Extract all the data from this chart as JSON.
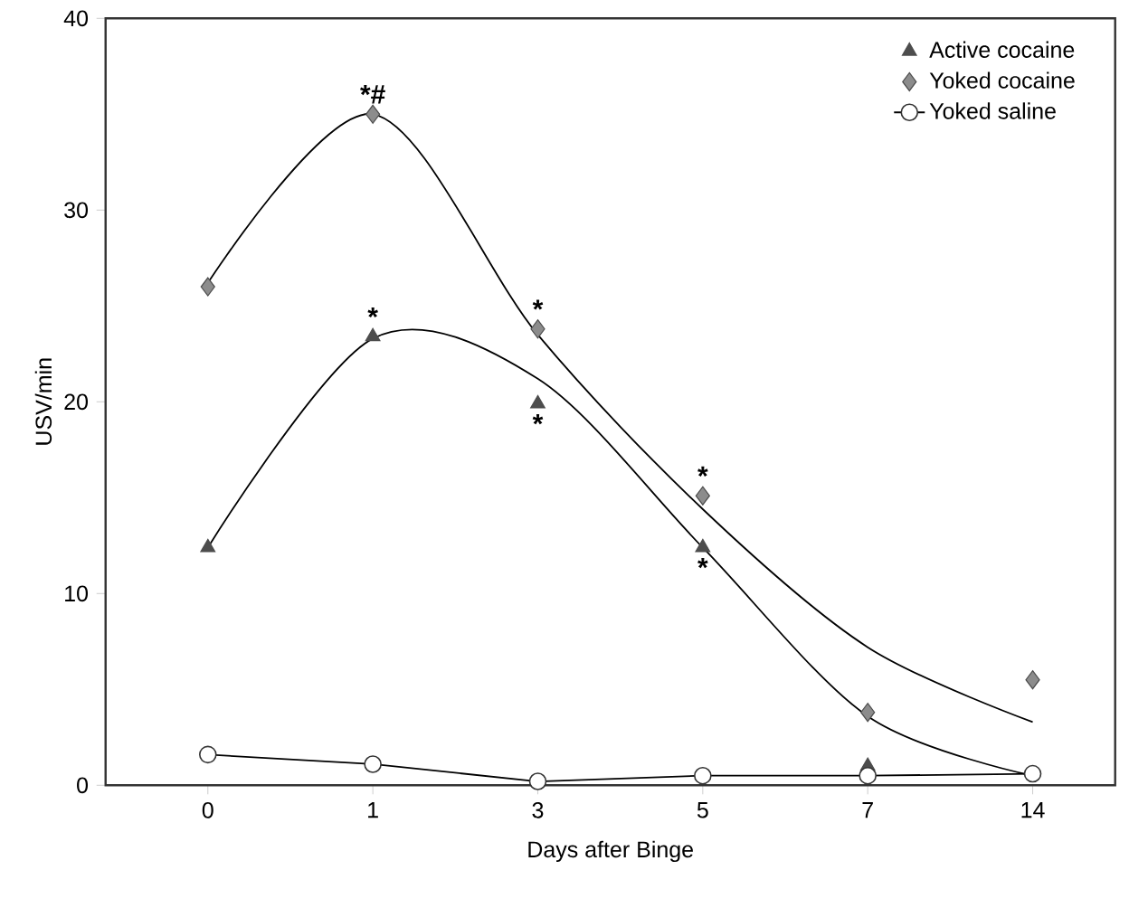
{
  "chart_data": {
    "type": "scatter",
    "xlabel": "Days after Binge",
    "ylabel": "USV/min",
    "categories": [
      "0",
      "1",
      "3",
      "5",
      "7",
      "14"
    ],
    "ylim": [
      0,
      40
    ],
    "yticks": [
      0,
      10,
      20,
      30,
      40
    ],
    "grid": false,
    "legend": "top right",
    "series": [
      {
        "name": "Active cocaine",
        "color": "#4d4d4d",
        "marker": "triangle",
        "values": [
          12.4,
          23.4,
          19.9,
          12.4,
          1,
          null
        ]
      },
      {
        "name": "Yoked cocaine",
        "color": "#8c8c8c",
        "marker": "diamond",
        "values": [
          26,
          35,
          23.8,
          15.1,
          3.8,
          5.5
        ]
      },
      {
        "name": "Yoked saline",
        "type": "line",
        "color": "#000000",
        "marker": "circle",
        "values": [
          1.6,
          1.1,
          0.2,
          0.5,
          0.5,
          0.6
        ]
      },
      {
        "type": "line",
        "color": "#000000",
        "marker": "none",
        "values": [
          12.4,
          23.3,
          21.2,
          12.4,
          3.6,
          0.5
        ]
      },
      {
        "type": "line",
        "color": "#000000",
        "marker": "none",
        "values": [
          26.2,
          35,
          23.5,
          14.4,
          7.2,
          3.3
        ]
      }
    ],
    "annotations": [
      {
        "text": "*#",
        "x": "1",
        "y": 35
      },
      {
        "text": "*",
        "x": "1",
        "y": 23.4
      },
      {
        "text": "*",
        "x": "3",
        "y": 23.8
      },
      {
        "text": "*",
        "x": "3",
        "y": 19.9
      },
      {
        "text": "*",
        "x": "5",
        "y": 15.1
      },
      {
        "text": "*",
        "x": "5",
        "y": 12.4
      }
    ]
  }
}
